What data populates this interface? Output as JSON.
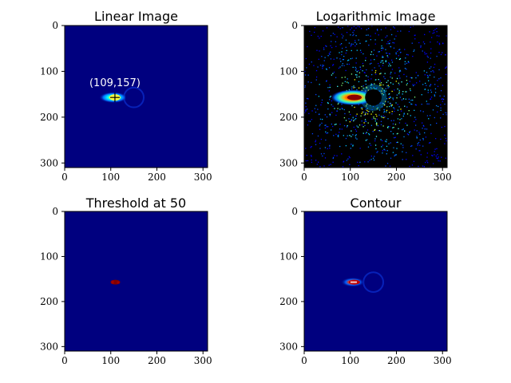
{
  "figure": {
    "layout": "2x2 image grid",
    "colormap": "jet"
  },
  "chart_data": [
    {
      "type": "heatmap",
      "title": "Linear Image",
      "xlim": [
        0,
        310
      ],
      "ylim": [
        310,
        0
      ],
      "xticks": [
        "0",
        "100",
        "200",
        "300"
      ],
      "yticks": [
        "0",
        "100",
        "200",
        "300"
      ],
      "annotation": {
        "text": "(109,157)",
        "point": [
          109,
          157
        ]
      },
      "features": {
        "beam_center": [
          109,
          157
        ],
        "beamstop_center": [
          150,
          157
        ],
        "beamstop_radius": 18
      },
      "background_color": "#00007f"
    },
    {
      "type": "heatmap",
      "title": "Logarithmic Image",
      "xlim": [
        0,
        310
      ],
      "ylim": [
        310,
        0
      ],
      "xticks": [
        "0",
        "100",
        "200",
        "300"
      ],
      "yticks": [
        "0",
        "100",
        "200",
        "300"
      ],
      "features": {
        "beam_center": [
          109,
          157
        ],
        "beamstop_center": [
          150,
          157
        ],
        "beamstop_radius": 18,
        "speckle": true
      },
      "background_color": "#000000"
    },
    {
      "type": "heatmap",
      "title": "Threshold at 50",
      "threshold": 50,
      "xlim": [
        0,
        310
      ],
      "ylim": [
        310,
        0
      ],
      "xticks": [
        "0",
        "100",
        "200",
        "300"
      ],
      "yticks": [
        "0",
        "100",
        "200",
        "300"
      ],
      "features": {
        "region_center": [
          110,
          157
        ]
      },
      "background_color": "#00007f"
    },
    {
      "type": "heatmap",
      "title": "Contour",
      "xlim": [
        0,
        310
      ],
      "ylim": [
        310,
        0
      ],
      "xticks": [
        "0",
        "100",
        "200",
        "300"
      ],
      "yticks": [
        "0",
        "100",
        "200",
        "300"
      ],
      "features": {
        "beam_center": [
          109,
          157
        ],
        "beamstop_center": [
          150,
          157
        ],
        "beamstop_radius": 18
      },
      "background_color": "#00007f"
    }
  ]
}
